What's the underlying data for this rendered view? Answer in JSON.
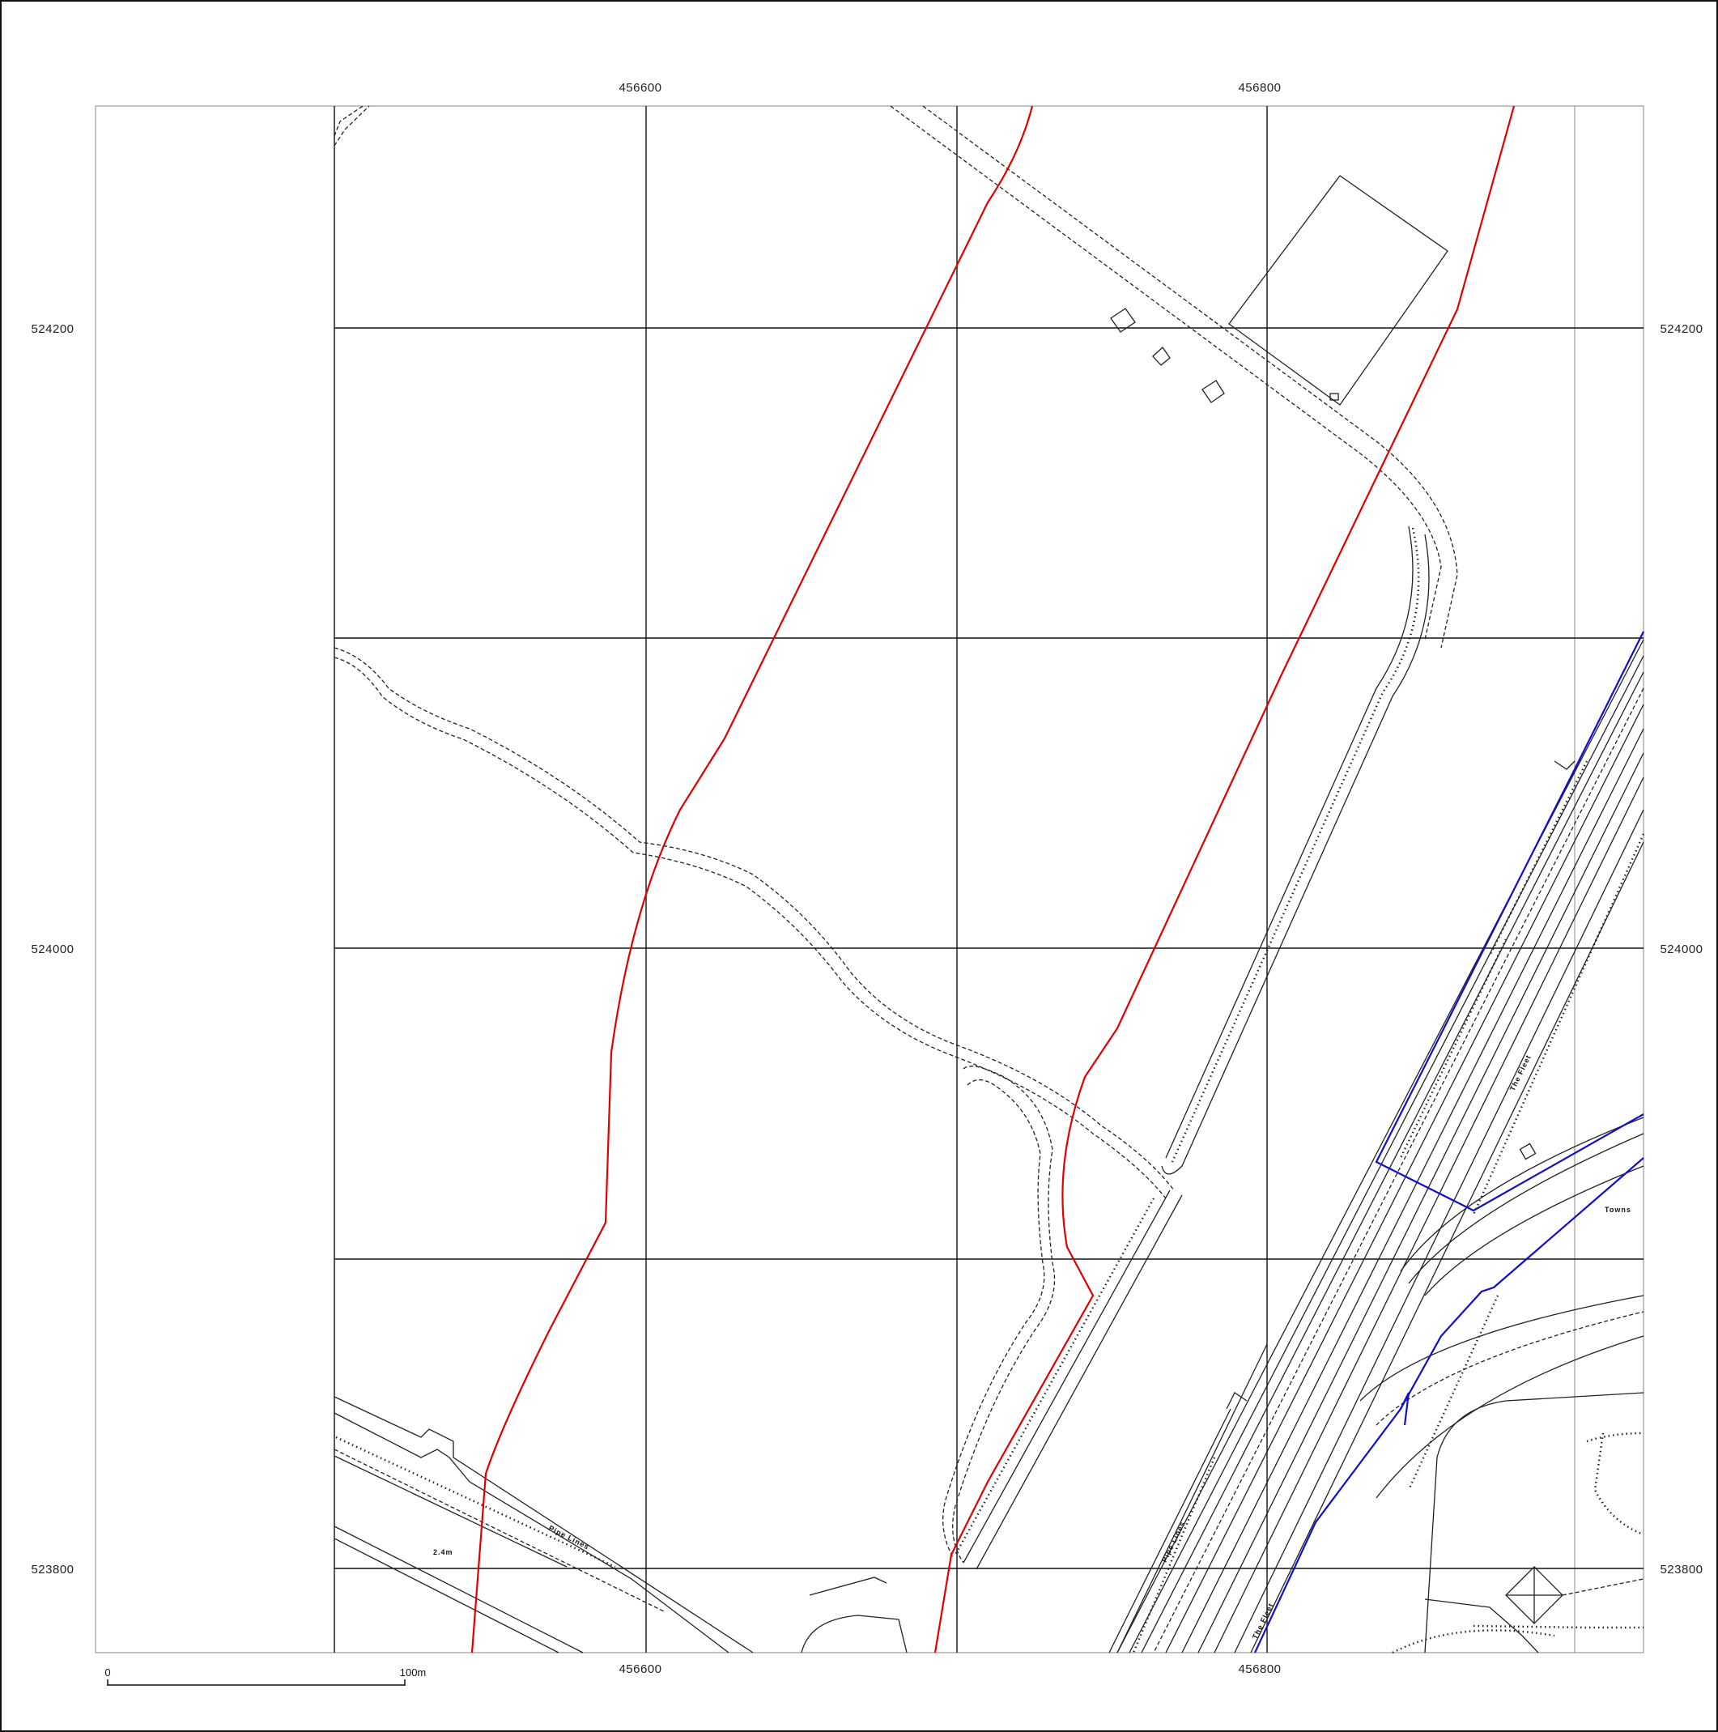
{
  "map": {
    "easting_labels": [
      "456600",
      "456800"
    ],
    "northing_labels": [
      "524200",
      "524000",
      "523800"
    ],
    "scale_bar": {
      "start_label": "0",
      "end_label": "100m"
    },
    "feature_labels": [
      {
        "text": "Pipe Lines"
      },
      {
        "text": "2.4m"
      },
      {
        "text": "Pipe Lines"
      },
      {
        "text": "The Fleet"
      },
      {
        "text": "The Fleet"
      },
      {
        "text": "Towns"
      }
    ],
    "colors": {
      "red_boundary": "#e00000",
      "blue_boundary": "#1010cc",
      "grid": "#111111"
    }
  }
}
